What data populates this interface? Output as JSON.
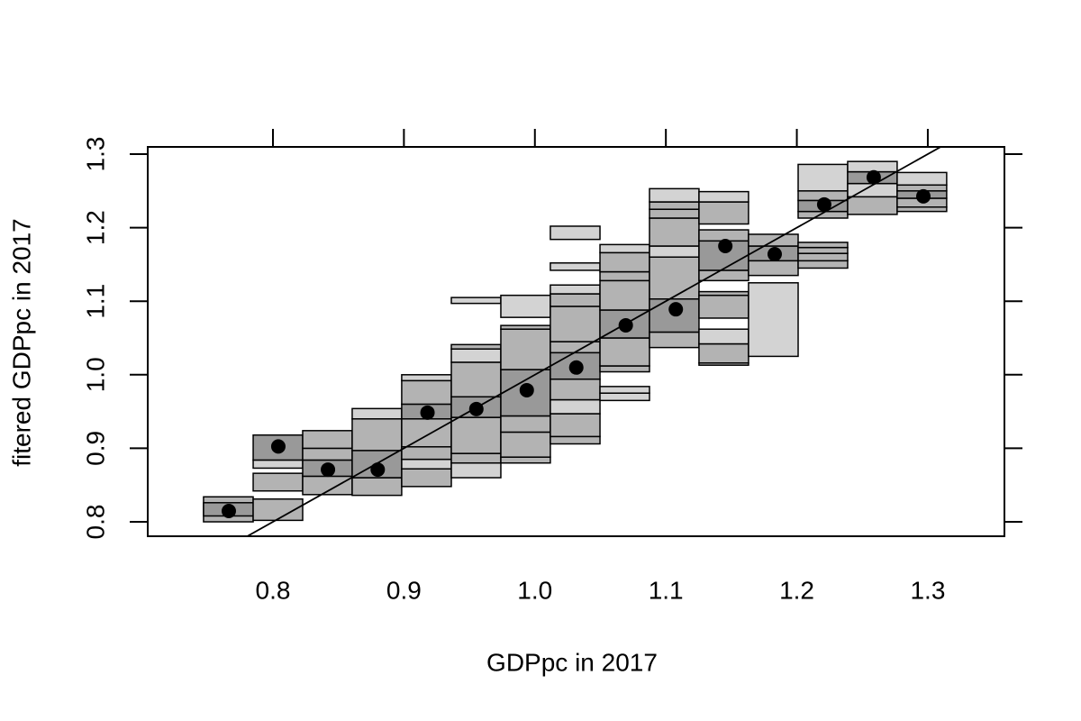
{
  "chart_data": {
    "type": "binned-scatter",
    "xlabel": "GDPpc in 2017",
    "ylabel": "fitered GDPpc in 2017",
    "xlim": [
      0.7044,
      1.3585
    ],
    "ylim": [
      0.7804,
      1.3098
    ],
    "xticks": [
      0.8,
      0.9,
      {
        "value": 1,
        "label": "1.0"
      },
      1.1,
      1.2,
      1.3
    ],
    "yticks": [
      0.8,
      0.9,
      {
        "value": 1,
        "label": "1.0"
      },
      1.1,
      1.2,
      1.3
    ],
    "point_color": "#000000",
    "abline": {
      "intercept": 0,
      "slope": 1
    },
    "points": {
      "x": [
        0.7663,
        0.8041,
        0.842,
        0.88,
        0.918,
        0.9553,
        0.9938,
        1.0316,
        1.0694,
        1.1076,
        1.1454,
        1.1831,
        1.2209,
        1.2587,
        1.2966
      ],
      "y": [
        0.8147,
        0.9025,
        0.871,
        0.871,
        0.9485,
        0.9534,
        0.979,
        1.0098,
        1.0672,
        1.089,
        1.175,
        1.164,
        1.2316,
        1.2684,
        1.2426
      ]
    },
    "bins": [
      {
        "x": [
          0.747,
          0.7849
        ],
        "boxes": [
          [
            0.8,
            0.834
          ],
          [
            0.808,
            0.826
          ]
        ],
        "colors": [
          "#b3b3b3",
          "#999999"
        ]
      },
      {
        "x": [
          0.7849,
          0.8227
        ],
        "boxes": [
          [
            0.802,
            0.831
          ],
          [
            0.842,
            0.866
          ],
          [
            0.873,
            0.884
          ],
          [
            0.884,
            0.918
          ]
        ],
        "colors": [
          "#b3b3b3",
          "#b3b3b3",
          "#d3d3d3",
          "#999999"
        ]
      },
      {
        "x": [
          0.8227,
          0.8605
        ],
        "boxes": [
          [
            0.837,
            0.862
          ],
          [
            0.862,
            0.884
          ],
          [
            0.884,
            0.9
          ],
          [
            0.9,
            0.924
          ]
        ],
        "colors": [
          "#b3b3b3",
          "#999999",
          "#b3b3b3",
          "#b3b3b3"
        ]
      },
      {
        "x": [
          0.8605,
          0.8983
        ],
        "boxes": [
          [
            0.836,
            0.86
          ],
          [
            0.86,
            0.897
          ],
          [
            0.897,
            0.94
          ],
          [
            0.94,
            0.954
          ]
        ],
        "colors": [
          "#b3b3b3",
          "#999999",
          "#b3b3b3",
          "#d3d3d3"
        ]
      },
      {
        "x": [
          0.8983,
          0.9362
        ],
        "boxes": [
          [
            0.848,
            0.872
          ],
          [
            0.872,
            0.885
          ],
          [
            0.885,
            0.902
          ],
          [
            0.902,
            0.94
          ],
          [
            0.94,
            0.96
          ],
          [
            0.96,
            0.992
          ],
          [
            0.992,
            1.0
          ]
        ],
        "colors": [
          "#b3b3b3",
          "#d3d3d3",
          "#b3b3b3",
          "#b3b3b3",
          "#999999",
          "#b3b3b3",
          "#d3d3d3"
        ]
      },
      {
        "x": [
          0.9362,
          0.974
        ],
        "boxes": [
          [
            0.86,
            0.88
          ],
          [
            0.88,
            0.893
          ],
          [
            0.893,
            0.942
          ],
          [
            0.942,
            0.97
          ],
          [
            0.97,
            1.017
          ],
          [
            1.017,
            1.035
          ],
          [
            1.035,
            1.041
          ],
          [
            1.097,
            1.105
          ]
        ],
        "colors": [
          "#d3d3d3",
          "#b3b3b3",
          "#b3b3b3",
          "#999999",
          "#b3b3b3",
          "#d3d3d3",
          "#b3b3b3",
          "#d3d3d3"
        ]
      },
      {
        "x": [
          0.974,
          1.0118
        ],
        "boxes": [
          [
            0.88,
            0.888
          ],
          [
            0.888,
            0.922
          ],
          [
            0.922,
            0.944
          ],
          [
            0.944,
            1.007
          ],
          [
            1.007,
            1.062
          ],
          [
            1.062,
            1.067
          ],
          [
            1.078,
            1.108
          ]
        ],
        "colors": [
          "#b3b3b3",
          "#b3b3b3",
          "#b3b3b3",
          "#999999",
          "#b3b3b3",
          "#b3b3b3",
          "#d3d3d3"
        ]
      },
      {
        "x": [
          1.0118,
          1.0497
        ],
        "boxes": [
          [
            0.906,
            0.916
          ],
          [
            0.916,
            0.947
          ],
          [
            0.947,
            0.966
          ],
          [
            0.966,
            0.994
          ],
          [
            0.994,
            1.03
          ],
          [
            1.03,
            1.045
          ],
          [
            1.045,
            1.093
          ],
          [
            1.093,
            1.11
          ],
          [
            1.11,
            1.122
          ],
          [
            1.142,
            1.152
          ],
          [
            1.184,
            1.202
          ]
        ],
        "colors": [
          "#b3b3b3",
          "#b3b3b3",
          "#d3d3d3",
          "#b3b3b3",
          "#999999",
          "#b3b3b3",
          "#b3b3b3",
          "#b3b3b3",
          "#d3d3d3",
          "#d3d3d3",
          "#d3d3d3"
        ]
      },
      {
        "x": [
          1.0497,
          1.0875
        ],
        "boxes": [
          [
            0.965,
            0.975
          ],
          [
            0.975,
            0.984
          ],
          [
            1.004,
            1.012
          ],
          [
            1.012,
            1.05
          ],
          [
            1.05,
            1.088
          ],
          [
            1.088,
            1.128
          ],
          [
            1.128,
            1.14
          ],
          [
            1.14,
            1.166
          ],
          [
            1.166,
            1.177
          ]
        ],
        "colors": [
          "#d3d3d3",
          "#d3d3d3",
          "#b3b3b3",
          "#b3b3b3",
          "#999999",
          "#b3b3b3",
          "#b3b3b3",
          "#b3b3b3",
          "#d3d3d3"
        ]
      },
      {
        "x": [
          1.0875,
          1.1253
        ],
        "boxes": [
          [
            1.037,
            1.058
          ],
          [
            1.058,
            1.103
          ],
          [
            1.103,
            1.16
          ],
          [
            1.16,
            1.175
          ],
          [
            1.175,
            1.213
          ],
          [
            1.213,
            1.225
          ],
          [
            1.225,
            1.235
          ],
          [
            1.235,
            1.253
          ]
        ],
        "colors": [
          "#b3b3b3",
          "#999999",
          "#b3b3b3",
          "#d3d3d3",
          "#b3b3b3",
          "#b3b3b3",
          "#b3b3b3",
          "#d3d3d3"
        ]
      },
      {
        "x": [
          1.1253,
          1.1631
        ],
        "boxes": [
          [
            1.013,
            1.016
          ],
          [
            1.016,
            1.042
          ],
          [
            1.042,
            1.062
          ],
          [
            1.077,
            1.108
          ],
          [
            1.108,
            1.113
          ],
          [
            1.128,
            1.142
          ],
          [
            1.142,
            1.182
          ],
          [
            1.182,
            1.197
          ],
          [
            1.205,
            1.235
          ],
          [
            1.235,
            1.249
          ]
        ],
        "colors": [
          "#b3b3b3",
          "#b3b3b3",
          "#d3d3d3",
          "#b3b3b3",
          "#b3b3b3",
          "#b3b3b3",
          "#999999",
          "#b3b3b3",
          "#b3b3b3",
          "#d3d3d3"
        ]
      },
      {
        "x": [
          1.1631,
          1.201
        ],
        "boxes": [
          [
            1.025,
            1.125
          ],
          [
            1.135,
            1.155
          ],
          [
            1.155,
            1.175
          ],
          [
            1.175,
            1.191
          ]
        ],
        "colors": [
          "#d3d3d3",
          "#b3b3b3",
          "#999999",
          "#b3b3b3"
        ]
      },
      {
        "x": [
          1.201,
          1.2388
        ],
        "boxes": [
          [
            1.145,
            1.155
          ],
          [
            1.155,
            1.165
          ],
          [
            1.165,
            1.173
          ],
          [
            1.173,
            1.18
          ],
          [
            1.213,
            1.222
          ],
          [
            1.222,
            1.237
          ],
          [
            1.237,
            1.25
          ],
          [
            1.25,
            1.286
          ]
        ],
        "colors": [
          "#b3b3b3",
          "#b3b3b3",
          "#b3b3b3",
          "#b3b3b3",
          "#b3b3b3",
          "#999999",
          "#b3b3b3",
          "#d3d3d3"
        ]
      },
      {
        "x": [
          1.2388,
          1.2766
        ],
        "boxes": [
          [
            1.218,
            1.242
          ],
          [
            1.242,
            1.26
          ],
          [
            1.26,
            1.276
          ],
          [
            1.276,
            1.29
          ]
        ],
        "colors": [
          "#b3b3b3",
          "#d3d3d3",
          "#999999",
          "#d3d3d3"
        ]
      },
      {
        "x": [
          1.2766,
          1.3144
        ],
        "boxes": [
          [
            1.222,
            1.228
          ],
          [
            1.228,
            1.24
          ],
          [
            1.24,
            1.25
          ],
          [
            1.25,
            1.258
          ],
          [
            1.258,
            1.275
          ]
        ],
        "colors": [
          "#b3b3b3",
          "#b3b3b3",
          "#999999",
          "#b3b3b3",
          "#d3d3d3"
        ]
      }
    ]
  }
}
